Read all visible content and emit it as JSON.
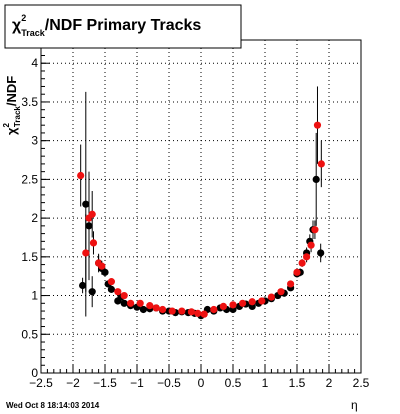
{
  "footer": {
    "timestamp": "Wed Oct  8 18:14:03 2014"
  },
  "chart_data": {
    "type": "scatter",
    "title": "χ²Track/NDF  Primary Tracks",
    "xlabel": "η",
    "ylabel": "χ²Track/NDF",
    "xlim": [
      -2.5,
      2.5
    ],
    "ylim": [
      0,
      4.3
    ],
    "xticks": [
      "−2.5",
      "−2",
      "−1.5",
      "−1",
      "−0.5",
      "0",
      "0.5",
      "1",
      "1.5",
      "2",
      "2.5"
    ],
    "yticks": [
      "0",
      "0.5",
      "1",
      "1.5",
      "2",
      "2.5",
      "3",
      "3.5",
      "4"
    ],
    "grid": true,
    "series": [
      {
        "color": "#000000",
        "points": [
          [
            -1.85,
            1.13,
            0.1
          ],
          [
            -1.8,
            2.18,
            1.45
          ],
          [
            -1.75,
            1.9,
            0.7
          ],
          [
            -1.7,
            1.05,
            0.2
          ],
          [
            -1.6,
            1.42,
            0.12
          ],
          [
            -1.55,
            1.35,
            0.08
          ],
          [
            -1.5,
            1.3,
            0.05
          ],
          [
            -1.45,
            1.15,
            0.04
          ],
          [
            -1.4,
            1.08,
            0.03
          ],
          [
            -1.3,
            0.93,
            0.02
          ],
          [
            -1.25,
            0.98,
            0.02
          ],
          [
            -1.2,
            0.9,
            0.02
          ],
          [
            -1.1,
            0.87,
            0.02
          ],
          [
            -1.0,
            0.85,
            0.02
          ],
          [
            -0.9,
            0.82,
            0.01
          ],
          [
            -0.8,
            0.83,
            0.01
          ],
          [
            -0.7,
            0.84,
            0.01
          ],
          [
            -0.6,
            0.8,
            0.01
          ],
          [
            -0.5,
            0.8,
            0.01
          ],
          [
            -0.4,
            0.78,
            0.01
          ],
          [
            -0.3,
            0.79,
            0.01
          ],
          [
            -0.2,
            0.78,
            0.01
          ],
          [
            -0.1,
            0.77,
            0.01
          ],
          [
            0.0,
            0.74,
            0.01
          ],
          [
            0.1,
            0.82,
            0.01
          ],
          [
            0.2,
            0.8,
            0.01
          ],
          [
            0.3,
            0.84,
            0.01
          ],
          [
            0.4,
            0.82,
            0.01
          ],
          [
            0.5,
            0.82,
            0.01
          ],
          [
            0.6,
            0.86,
            0.01
          ],
          [
            0.7,
            0.89,
            0.01
          ],
          [
            0.8,
            0.86,
            0.01
          ],
          [
            0.9,
            0.9,
            0.01
          ],
          [
            1.0,
            0.93,
            0.02
          ],
          [
            1.1,
            0.96,
            0.02
          ],
          [
            1.2,
            1.0,
            0.02
          ],
          [
            1.3,
            1.03,
            0.02
          ],
          [
            1.4,
            1.1,
            0.03
          ],
          [
            1.5,
            1.28,
            0.04
          ],
          [
            1.55,
            1.3,
            0.05
          ],
          [
            1.65,
            1.55,
            0.07
          ],
          [
            1.7,
            1.7,
            0.09
          ],
          [
            1.75,
            1.85,
            0.12
          ],
          [
            1.8,
            2.5,
            0.6
          ],
          [
            1.87,
            1.55,
            0.12
          ]
        ]
      },
      {
        "color": "#ee1111",
        "points": [
          [
            -1.88,
            2.55,
            0.4
          ],
          [
            -1.8,
            1.55,
            0.5
          ],
          [
            -1.75,
            2.0,
            0.35
          ],
          [
            -1.7,
            2.05,
            0.3
          ],
          [
            -1.68,
            1.68,
            0.15
          ],
          [
            -1.6,
            1.42,
            0.1
          ],
          [
            -1.55,
            1.38,
            0.07
          ],
          [
            -1.4,
            1.18,
            0.04
          ],
          [
            -1.3,
            1.05,
            0.03
          ],
          [
            -1.2,
            1.0,
            0.02
          ],
          [
            -1.1,
            0.9,
            0.02
          ],
          [
            -0.95,
            0.9,
            0.02
          ],
          [
            -0.8,
            0.87,
            0.01
          ],
          [
            -0.7,
            0.84,
            0.01
          ],
          [
            -0.6,
            0.82,
            0.01
          ],
          [
            -0.45,
            0.8,
            0.01
          ],
          [
            -0.3,
            0.8,
            0.01
          ],
          [
            -0.15,
            0.79,
            0.01
          ],
          [
            -0.05,
            0.77,
            0.01
          ],
          [
            0.05,
            0.76,
            0.01
          ],
          [
            0.2,
            0.82,
            0.01
          ],
          [
            0.35,
            0.86,
            0.01
          ],
          [
            0.5,
            0.88,
            0.01
          ],
          [
            0.65,
            0.9,
            0.01
          ],
          [
            0.8,
            0.92,
            0.01
          ],
          [
            0.95,
            0.93,
            0.02
          ],
          [
            1.1,
            0.98,
            0.02
          ],
          [
            1.25,
            1.05,
            0.02
          ],
          [
            1.4,
            1.15,
            0.03
          ],
          [
            1.5,
            1.3,
            0.04
          ],
          [
            1.58,
            1.42,
            0.05
          ],
          [
            1.65,
            1.5,
            0.07
          ],
          [
            1.72,
            1.65,
            0.09
          ],
          [
            1.78,
            1.85,
            0.12
          ],
          [
            1.82,
            3.2,
            0.5
          ],
          [
            1.88,
            2.7,
            0.3
          ]
        ]
      }
    ]
  }
}
